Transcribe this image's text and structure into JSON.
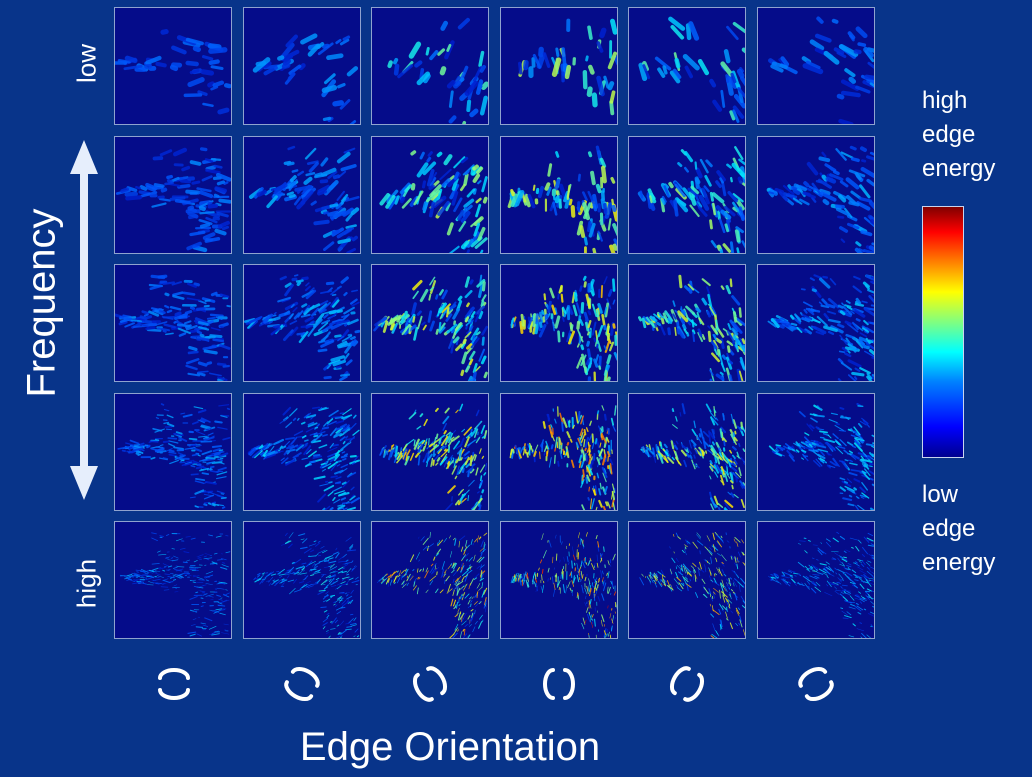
{
  "row_labels": {
    "top": "low",
    "bottom": "high"
  },
  "frequency_label": "Frequency",
  "x_axis_title": "Edge Orientation",
  "legend": {
    "high_lines": [
      "high",
      "edge",
      "energy"
    ],
    "low_lines": [
      "low",
      "edge",
      "energy"
    ]
  },
  "grid": {
    "rows": 5,
    "cols": 6,
    "orientations_deg": [
      90,
      60,
      30,
      0,
      -30,
      -60
    ]
  },
  "colors": {
    "background": "#08348a",
    "tile_base": "#050c8a"
  }
}
